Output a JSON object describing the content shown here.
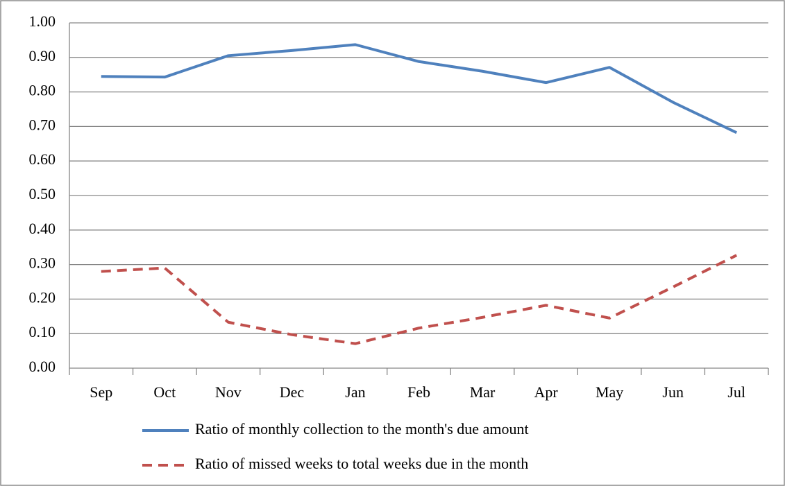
{
  "chart_data": {
    "type": "line",
    "categories": [
      "Sep",
      "Oct",
      "Nov",
      "Dec",
      "Jan",
      "Feb",
      "Mar",
      "Apr",
      "May",
      "Jun",
      "Jul"
    ],
    "series": [
      {
        "name": "Ratio of monthly collection to the month's due amount",
        "color": "#4f81bd",
        "dash": "solid",
        "values": [
          0.845,
          0.843,
          0.905,
          0.92,
          0.937,
          0.888,
          0.86,
          0.827,
          0.871,
          0.77,
          0.682
        ]
      },
      {
        "name": "Ratio of missed weeks to total weeks due in the month",
        "color": "#c0504d",
        "dash": "dashed",
        "values": [
          0.28,
          0.29,
          0.133,
          0.097,
          0.071,
          0.116,
          0.147,
          0.182,
          0.145,
          0.235,
          0.327
        ]
      }
    ],
    "ylim": [
      0,
      1
    ],
    "yticks": [
      {
        "value": 0,
        "label": "0.00"
      },
      {
        "value": 0.1,
        "label": "0.10"
      },
      {
        "value": 0.2,
        "label": "0.20"
      },
      {
        "value": 0.3,
        "label": "0.30"
      },
      {
        "value": 0.4,
        "label": "0.40"
      },
      {
        "value": 0.5,
        "label": "0.50"
      },
      {
        "value": 0.6,
        "label": "0.60"
      },
      {
        "value": 0.7,
        "label": "0.70"
      },
      {
        "value": 0.8,
        "label": "0.80"
      },
      {
        "value": 0.9,
        "label": "0.90"
      },
      {
        "value": 1,
        "label": "1.00"
      }
    ],
    "grid": true,
    "legend": "bottom"
  }
}
